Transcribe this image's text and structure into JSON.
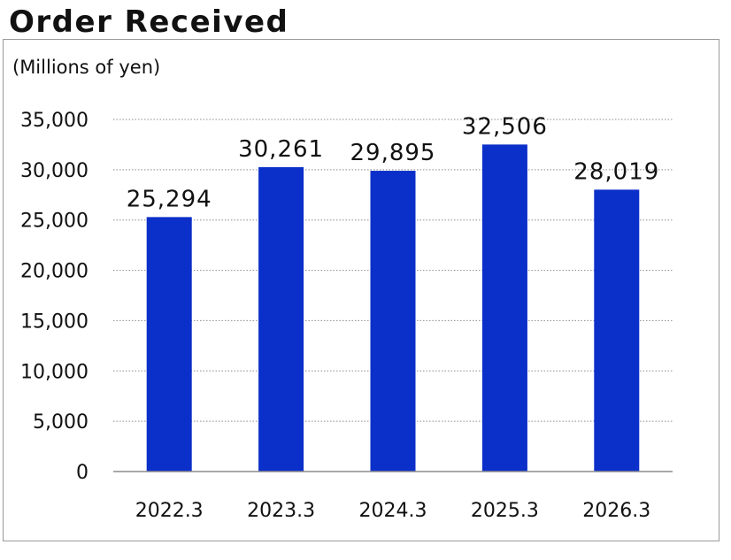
{
  "chart_data": {
    "type": "bar",
    "title": "Order Received",
    "unit_label": "(Millions of yen)",
    "categories": [
      "2022.3",
      "2023.3",
      "2024.3",
      "2025.3",
      "2026.3"
    ],
    "values": [
      25294,
      30261,
      29895,
      32506,
      28019
    ],
    "data_labels": [
      "25,294",
      "30,261",
      "29,895",
      "32,506",
      "28,019"
    ],
    "yticks": [
      0,
      5000,
      10000,
      15000,
      20000,
      25000,
      30000,
      35000
    ],
    "ytick_labels": [
      "0",
      "5,000",
      "10,000",
      "15,000",
      "20,000",
      "25,000",
      "30,000",
      "35,000"
    ],
    "ylim": [
      0,
      35000
    ],
    "grid": true,
    "legend": "none",
    "bar_color": "#0b2fc9"
  }
}
